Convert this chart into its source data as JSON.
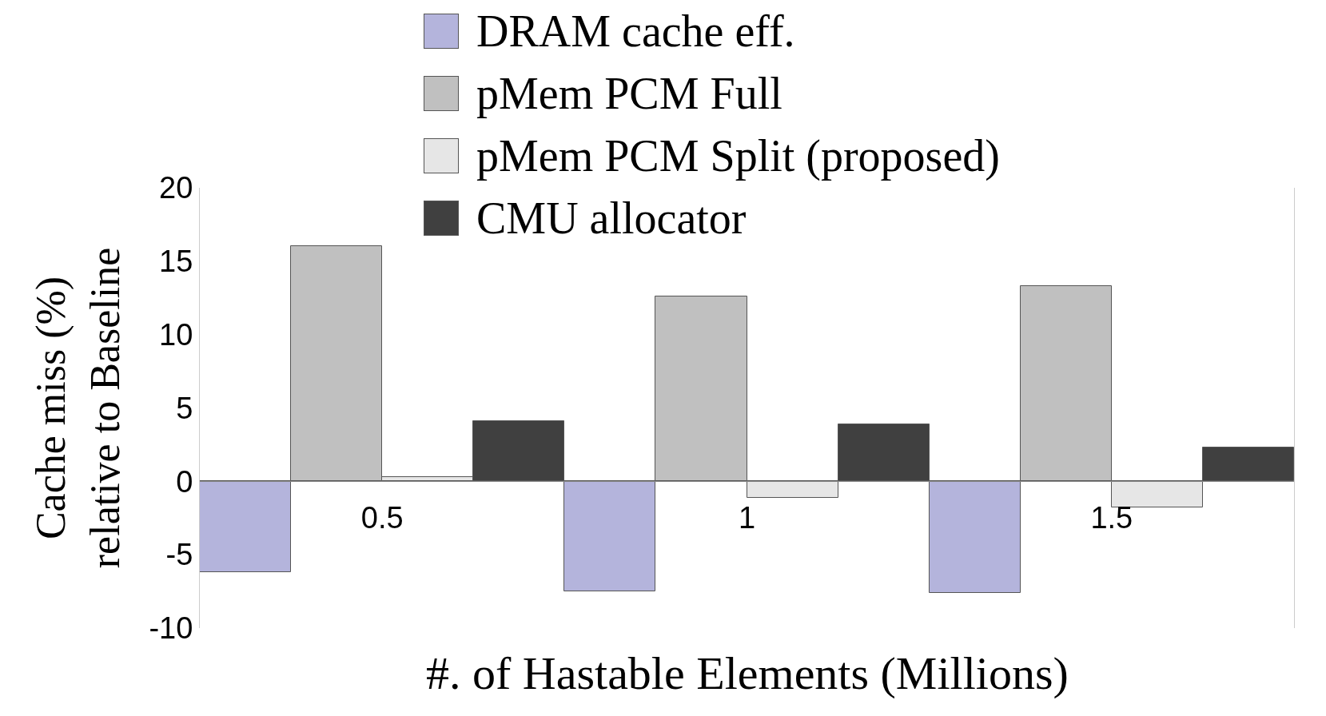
{
  "chart_data": {
    "type": "bar",
    "xlabel": "#. of Hastable Elements (Millions)",
    "ylabel": "Cache miss (%)\nrelative to Baseline",
    "categories": [
      "0.5",
      "1",
      "1.5"
    ],
    "series": [
      {
        "name": "DRAM cache eff.",
        "color": "#b4b4dc",
        "values": [
          -6.2,
          -7.5,
          -7.6
        ]
      },
      {
        "name": "pMem PCM Full",
        "color": "#c0c0c0",
        "values": [
          16,
          12.6,
          13.3
        ]
      },
      {
        "name": "pMem PCM Split (proposed)",
        "color": "#e6e6e6",
        "values": [
          0.3,
          -1.1,
          -1.8
        ]
      },
      {
        "name": "CMU allocator",
        "color": "#404040",
        "values": [
          4.1,
          3.9,
          2.3
        ]
      }
    ],
    "ylim": [
      -10,
      20
    ],
    "yticks": [
      -10,
      -5,
      0,
      5,
      10,
      15,
      20
    ],
    "grid": false,
    "legend": "top"
  }
}
